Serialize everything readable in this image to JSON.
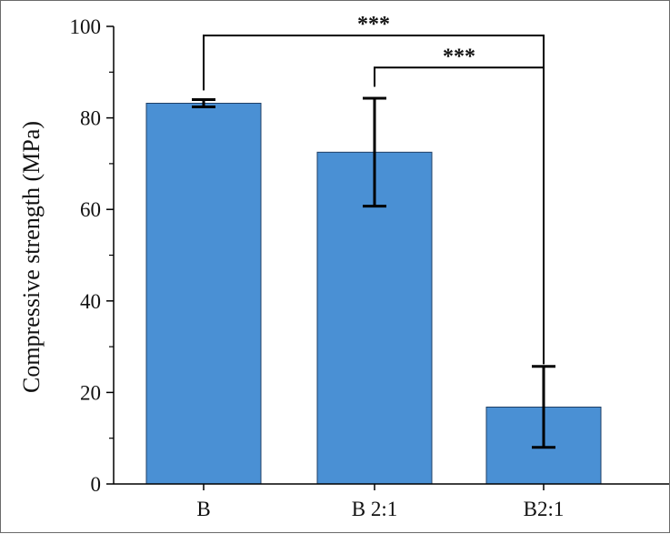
{
  "chart_data": {
    "type": "bar",
    "title": "",
    "xlabel": "",
    "ylabel": "Compressive strength (MPa)",
    "ylim": [
      0,
      100
    ],
    "yticks": [
      0,
      20,
      40,
      60,
      80,
      100
    ],
    "categories": [
      "B",
      "B 2:1",
      "B2:1"
    ],
    "values": [
      83.2,
      72.5,
      16.8
    ],
    "error_bars": [
      {
        "low": 82.4,
        "high": 84.0
      },
      {
        "low": 60.7,
        "high": 84.3
      },
      {
        "low": 8.0,
        "high": 25.7
      }
    ],
    "bar_color": "#4a90d4",
    "significance": [
      {
        "from": 0,
        "to": 2,
        "label": "***",
        "level": 98
      },
      {
        "from": 1,
        "to": 2,
        "label": "***",
        "level": 91
      }
    ],
    "grid": false,
    "legend": "none"
  }
}
